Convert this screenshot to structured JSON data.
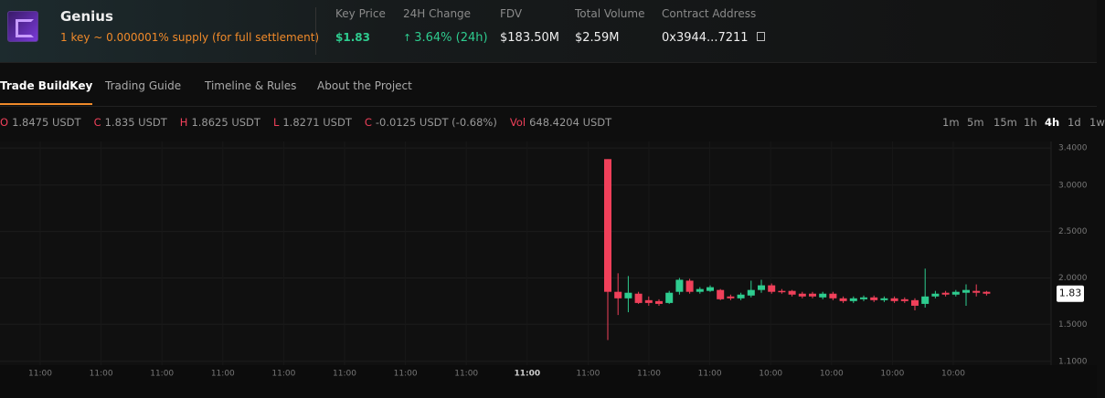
{
  "header": {
    "name": "Genius",
    "subtitle": "1 key ~ 0.000001% supply (for full settlement)",
    "stats": [
      {
        "label": "Key Price",
        "value": "$1.83"
      },
      {
        "label": "24H Change",
        "value": "3.64% (24h)"
      },
      {
        "label": "FDV",
        "value": "$183.50M"
      },
      {
        "label": "Total Volume",
        "value": "$2.59M"
      },
      {
        "label": "Contract Address",
        "value": "0x3944...7211"
      }
    ]
  },
  "tabs": [
    "Trade BuildKey",
    "Trading Guide",
    "Timeline & Rules",
    "About the Project"
  ],
  "ohlc": [
    {
      "key": "O",
      "value": "1.8475 USDT"
    },
    {
      "key": "C",
      "value": "1.835 USDT"
    },
    {
      "key": "H",
      "value": "1.8625 USDT"
    },
    {
      "key": "L",
      "value": "1.8271 USDT"
    },
    {
      "key": "C",
      "value": "-0.0125 USDT (-0.68%)"
    },
    {
      "key": "Vol",
      "value": "648.4204 USDT"
    }
  ],
  "intervals": [
    "1m",
    "5m",
    "15m",
    "1h",
    "4h",
    "1d",
    "1w"
  ],
  "chart_data": {
    "type": "candlestick",
    "up_color": "#2ecc8f",
    "down_color": "#f0405a",
    "last_price": "1.83",
    "x_labels": [
      "11:00",
      "11:00",
      "11:00",
      "11:00",
      "11:00",
      "11:00",
      "11:00",
      "11:00",
      "11:00",
      "11:00",
      "11:00",
      "11:00",
      "10:00",
      "10:00",
      "10:00",
      "10:00"
    ],
    "open": [
      3.28,
      1.85,
      1.78,
      1.83,
      1.76,
      1.75,
      1.73,
      1.85,
      1.97,
      1.85,
      1.86,
      1.87,
      1.8,
      1.78,
      1.81,
      1.87,
      1.92,
      1.86,
      1.86,
      1.83,
      1.83,
      1.79,
      1.83,
      1.78,
      1.75,
      1.77,
      1.79,
      1.76,
      1.78,
      1.77,
      1.76,
      1.72,
      1.8,
      1.84,
      1.82,
      1.84,
      1.86,
      1.85
    ],
    "close": [
      1.85,
      1.78,
      1.84,
      1.73,
      1.73,
      1.72,
      1.84,
      1.98,
      1.85,
      1.88,
      1.9,
      1.77,
      1.78,
      1.82,
      1.87,
      1.92,
      1.85,
      1.85,
      1.82,
      1.8,
      1.8,
      1.83,
      1.78,
      1.75,
      1.78,
      1.79,
      1.76,
      1.78,
      1.75,
      1.75,
      1.7,
      1.8,
      1.83,
      1.82,
      1.85,
      1.87,
      1.84,
      1.83
    ],
    "high": [
      3.28,
      2.05,
      2.02,
      1.85,
      1.8,
      1.77,
      1.86,
      2.0,
      1.99,
      1.9,
      1.92,
      1.88,
      1.82,
      1.84,
      1.97,
      1.98,
      1.94,
      1.88,
      1.87,
      1.85,
      1.85,
      1.85,
      1.85,
      1.8,
      1.8,
      1.81,
      1.81,
      1.8,
      1.8,
      1.79,
      1.78,
      2.1,
      1.86,
      1.86,
      1.87,
      1.93,
      1.93,
      1.86
    ],
    "low": [
      1.33,
      1.6,
      1.63,
      1.72,
      1.7,
      1.7,
      1.72,
      1.82,
      1.83,
      1.83,
      1.85,
      1.76,
      1.76,
      1.76,
      1.79,
      1.84,
      1.83,
      1.83,
      1.8,
      1.78,
      1.78,
      1.77,
      1.76,
      1.73,
      1.73,
      1.75,
      1.74,
      1.74,
      1.73,
      1.73,
      1.65,
      1.68,
      1.78,
      1.8,
      1.8,
      1.7,
      1.8,
      1.81
    ],
    "ylim": [
      1.06,
      3.47
    ],
    "yticks": [
      {
        "value": 3.4,
        "label": "3.4000"
      },
      {
        "value": 3.0,
        "label": "3.0000"
      },
      {
        "value": 2.5,
        "label": "2.5000"
      },
      {
        "value": 2.0,
        "label": "2.0000"
      },
      {
        "value": 1.5,
        "label": "1.5000"
      },
      {
        "value": 1.1,
        "label": "1.1000"
      }
    ]
  }
}
